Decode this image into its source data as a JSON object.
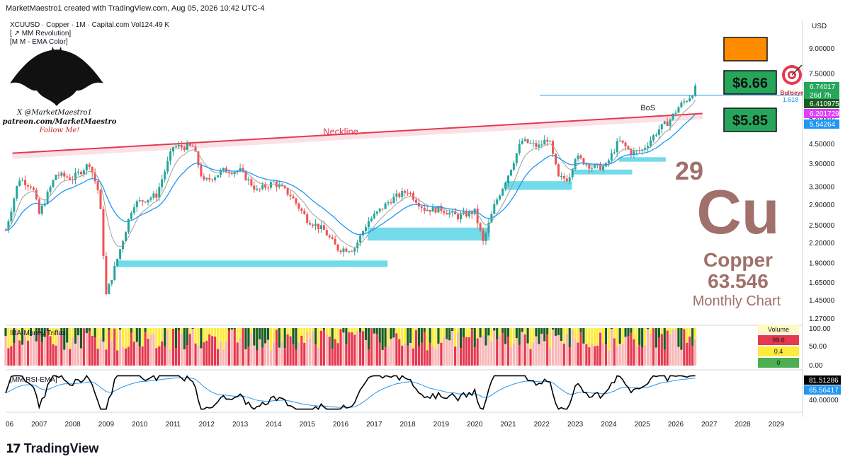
{
  "header": {
    "attribution": "MarketMaestro1 created with TradingView.com, Aug 05, 2026 10:42 UTC-4"
  },
  "symbol": {
    "line1": "XCUUSD · Copper · 1M · Capital.com   Vol124.49 K",
    "line2": "[ ↗ MM Revolution]",
    "line3": "[M M - EMA Color]"
  },
  "branding": {
    "handle1": "X @MarketMaestro1",
    "handle2": "patreon.com/MarketMaestro",
    "follow": "Follow Me!",
    "footer": "TradingView"
  },
  "annotations": {
    "neckline": "Neckline",
    "bos": "BoS",
    "target_high": "$6.66",
    "target_low": "$5.85",
    "bullseye_label": "Bullseye",
    "bullseye_fib": "1.618",
    "element_number": "29",
    "element_symbol": "Cu",
    "element_name": "Copper",
    "atomic_mass": "63.546",
    "chart_label": "Monthly Chart"
  },
  "colors": {
    "bull": "#26a69a",
    "bear": "#ef5350",
    "ema_blue": "#2196f3",
    "demand_zone": "#5bd3e6",
    "neckline": "#e53950",
    "target_box": "#26a65b",
    "orange_box": "#ff8c00"
  },
  "chart_data": [
    {
      "type": "candlestick",
      "title": "XCUUSD · Copper · 1M · Capital.com",
      "currency": "USD",
      "scale": "log",
      "ylim": [
        1.2,
        10.0
      ],
      "x_ticks": [
        "06",
        "2007",
        "2008",
        "2009",
        "2010",
        "2011",
        "2012",
        "2013",
        "2014",
        "2015",
        "2016",
        "2017",
        "2018",
        "2019",
        "2020",
        "2021",
        "2022",
        "2023",
        "2024",
        "2025",
        "2026",
        "2027",
        "2028",
        "2029"
      ],
      "y_ticks": [
        "9.00000",
        "7.50000",
        "6.00000",
        "5.40000",
        "4.50000",
        "3.90000",
        "3.30000",
        "2.90000",
        "2.50000",
        "2.20000",
        "1.90000",
        "1.65000",
        "1.45000",
        "1.27000"
      ],
      "price_labels": [
        {
          "value": "6.74017",
          "sub": "26d 7h",
          "color": "#26a65b"
        },
        {
          "value": "6.410975",
          "color": "#1b5e20"
        },
        {
          "value": "6.201729",
          "color": "#e040fb"
        },
        {
          "value": "5.54264",
          "color": "#2196f3"
        }
      ],
      "approx_close_path": [
        {
          "x": 2006.0,
          "y": 2.4
        },
        {
          "x": 2006.4,
          "y": 3.5
        },
        {
          "x": 2006.8,
          "y": 3.3
        },
        {
          "x": 2007.0,
          "y": 2.7
        },
        {
          "x": 2007.5,
          "y": 3.6
        },
        {
          "x": 2008.0,
          "y": 3.5
        },
        {
          "x": 2008.5,
          "y": 3.9
        },
        {
          "x": 2008.8,
          "y": 3.1
        },
        {
          "x": 2009.0,
          "y": 1.5
        },
        {
          "x": 2009.3,
          "y": 1.9
        },
        {
          "x": 2009.8,
          "y": 2.9
        },
        {
          "x": 2010.5,
          "y": 3.1
        },
        {
          "x": 2011.0,
          "y": 4.4
        },
        {
          "x": 2011.6,
          "y": 4.4
        },
        {
          "x": 2011.9,
          "y": 3.4
        },
        {
          "x": 2012.5,
          "y": 3.7
        },
        {
          "x": 2013.0,
          "y": 3.7
        },
        {
          "x": 2013.5,
          "y": 3.2
        },
        {
          "x": 2014.0,
          "y": 3.4
        },
        {
          "x": 2014.5,
          "y": 3.1
        },
        {
          "x": 2015.0,
          "y": 2.6
        },
        {
          "x": 2015.5,
          "y": 2.4
        },
        {
          "x": 2015.9,
          "y": 2.1
        },
        {
          "x": 2016.4,
          "y": 2.1
        },
        {
          "x": 2016.8,
          "y": 2.55
        },
        {
          "x": 2017.5,
          "y": 3.0
        },
        {
          "x": 2018.0,
          "y": 3.2
        },
        {
          "x": 2018.5,
          "y": 2.8
        },
        {
          "x": 2019.0,
          "y": 2.8
        },
        {
          "x": 2019.5,
          "y": 2.65
        },
        {
          "x": 2020.0,
          "y": 2.75
        },
        {
          "x": 2020.25,
          "y": 2.2
        },
        {
          "x": 2020.6,
          "y": 2.9
        },
        {
          "x": 2021.0,
          "y": 3.6
        },
        {
          "x": 2021.4,
          "y": 4.6
        },
        {
          "x": 2021.9,
          "y": 4.4
        },
        {
          "x": 2022.2,
          "y": 4.7
        },
        {
          "x": 2022.5,
          "y": 3.5
        },
        {
          "x": 2022.8,
          "y": 3.5
        },
        {
          "x": 2023.0,
          "y": 4.1
        },
        {
          "x": 2023.5,
          "y": 3.8
        },
        {
          "x": 2023.9,
          "y": 3.8
        },
        {
          "x": 2024.3,
          "y": 4.6
        },
        {
          "x": 2024.7,
          "y": 4.2
        },
        {
          "x": 2025.0,
          "y": 4.3
        },
        {
          "x": 2025.5,
          "y": 5.0
        },
        {
          "x": 2025.8,
          "y": 5.3
        },
        {
          "x": 2026.1,
          "y": 5.9
        },
        {
          "x": 2026.4,
          "y": 6.3
        },
        {
          "x": 2026.6,
          "y": 6.74
        }
      ],
      "demand_zones": [
        {
          "x0": 2009.3,
          "x1": 2017.4,
          "y0": 1.84,
          "y1": 1.93
        },
        {
          "x0": 2016.8,
          "x1": 2020.45,
          "y0": 2.23,
          "y1": 2.45
        },
        {
          "x0": 2020.9,
          "x1": 2022.9,
          "y0": 3.22,
          "y1": 3.43
        },
        {
          "x0": 2022.9,
          "x1": 2024.7,
          "y0": 3.6,
          "y1": 3.73
        },
        {
          "x0": 2024.3,
          "x1": 2025.7,
          "y0": 3.95,
          "y1": 4.08
        }
      ],
      "neckline": {
        "x0": 2006.2,
        "y0": 4.2,
        "x1": 2026.8,
        "y1": 5.6
      },
      "bos_level": {
        "x0": 2024.9,
        "x1": 2027.1,
        "y": 6.4
      }
    },
    {
      "type": "bar",
      "title": "IBA-Money Triflux",
      "ylim": [
        0,
        100
      ],
      "y_ticks": [
        "100.00",
        "50.00",
        "0.00"
      ],
      "legend": {
        "title": "Volume",
        "values": [
          "99.6",
          "0.4",
          "0"
        ]
      }
    },
    {
      "type": "line",
      "title": "[MM RSI-EMA]",
      "y_ticks": [
        "40.00000"
      ],
      "price_labels": [
        {
          "value": "81.51286",
          "color": "#000000"
        },
        {
          "value": "65.56417",
          "color": "#2196f3"
        }
      ]
    }
  ]
}
